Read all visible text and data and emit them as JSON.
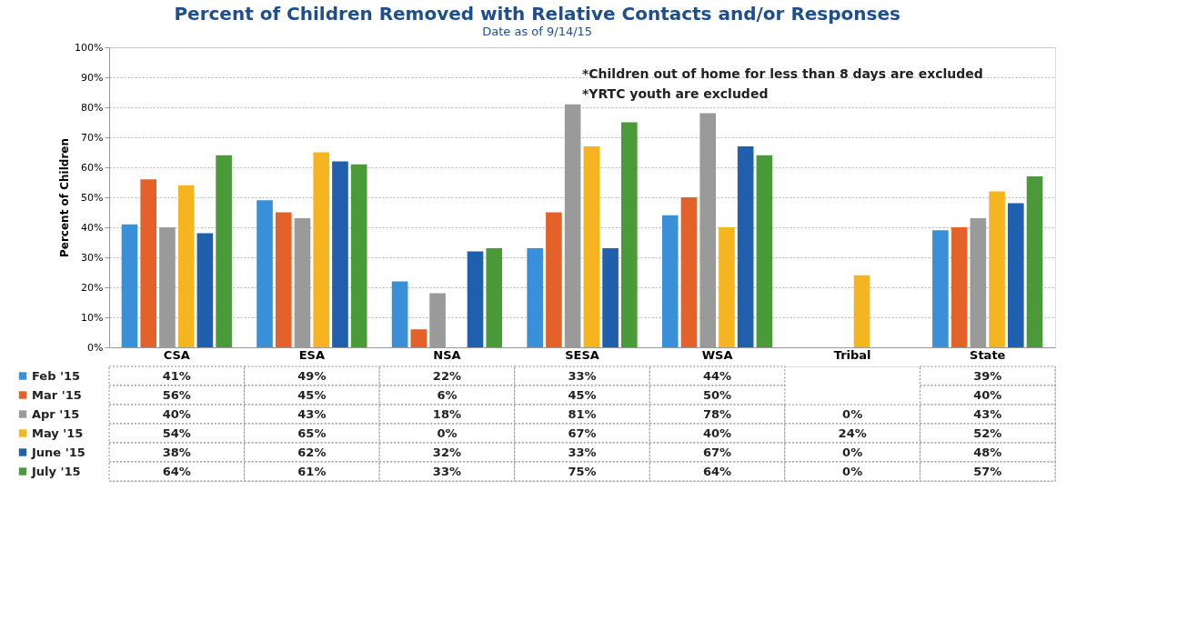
{
  "chart_data": {
    "type": "bar",
    "title": "Percent of Children Removed with Relative Contacts and/or Responses",
    "subtitle": "Date as of 9/14/15",
    "ylabel": "Percent of Children",
    "categories": [
      "CSA",
      "ESA",
      "NSA",
      "SESA",
      "WSA",
      "Tribal",
      "State"
    ],
    "series": [
      {
        "name": "Feb '15",
        "color": "#3a8fd9",
        "values": [
          41,
          49,
          22,
          33,
          44,
          null,
          39
        ],
        "value_labels": [
          "41%",
          "49%",
          "22%",
          "33%",
          "44%",
          null,
          "39%"
        ]
      },
      {
        "name": "Mar '15",
        "color": "#e4622a",
        "values": [
          56,
          45,
          6,
          45,
          50,
          null,
          40
        ],
        "value_labels": [
          "56%",
          "45%",
          "6%",
          "45%",
          "50%",
          null,
          "40%"
        ]
      },
      {
        "name": "Apr '15",
        "color": "#9a9a9a",
        "values": [
          40,
          43,
          18,
          81,
          78,
          0,
          43
        ],
        "value_labels": [
          "40%",
          "43%",
          "18%",
          "81%",
          "78%",
          "0%",
          "43%"
        ]
      },
      {
        "name": "May '15",
        "color": "#f5b520",
        "values": [
          54,
          65,
          0,
          67,
          40,
          24,
          52
        ],
        "value_labels": [
          "54%",
          "65%",
          "0%",
          "67%",
          "40%",
          "24%",
          "52%"
        ]
      },
      {
        "name": "June '15",
        "color": "#1f5fae",
        "values": [
          38,
          62,
          32,
          33,
          67,
          0,
          48
        ],
        "value_labels": [
          "38%",
          "62%",
          "32%",
          "33%",
          "67%",
          "0%",
          "48%"
        ]
      },
      {
        "name": "July '15",
        "color": "#4b9a3a",
        "values": [
          64,
          61,
          33,
          75,
          64,
          0,
          57
        ],
        "value_labels": [
          "64%",
          "61%",
          "33%",
          "75%",
          "64%",
          "0%",
          "57%"
        ]
      }
    ],
    "ylim": [
      0,
      100
    ],
    "yticks": [
      {
        "value": 0,
        "label": "0%"
      },
      {
        "value": 10,
        "label": "10%"
      },
      {
        "value": 20,
        "label": "20%"
      },
      {
        "value": 30,
        "label": "30%"
      },
      {
        "value": 40,
        "label": "40%"
      },
      {
        "value": 50,
        "label": "50%"
      },
      {
        "value": 60,
        "label": "60%"
      },
      {
        "value": 70,
        "label": "70%"
      },
      {
        "value": 80,
        "label": "80%"
      },
      {
        "value": 90,
        "label": "90%"
      },
      {
        "value": 100,
        "label": "100%"
      }
    ],
    "grid": "y",
    "legend": "bottom left",
    "annotations": [
      "*Children out of home for less than 8 days are excluded",
      "*YRTC youth are excluded"
    ]
  }
}
